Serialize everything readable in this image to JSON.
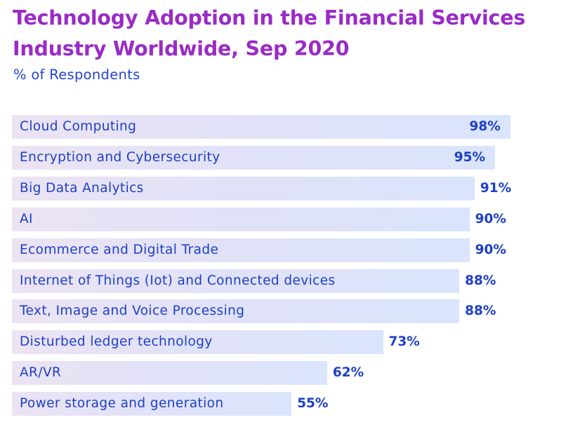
{
  "chart_data": {
    "type": "bar",
    "orientation": "horizontal",
    "title": "Technology Adoption in the Financial Services Industry Worldwide, Sep 2020",
    "subtitle": "% of Respondents",
    "unit": "%",
    "categories": [
      "Cloud Computing",
      "Encryption and Cybersecurity",
      "Big Data Analytics",
      "AI",
      "Ecommerce and Digital Trade",
      "Internet of Things (Iot) and Connected devices",
      "Text, Image and Voice Processing",
      "Disturbed ledger technology",
      "AR/VR",
      "Power storage and generation"
    ],
    "values": [
      98,
      95,
      91,
      90,
      90,
      88,
      88,
      73,
      62,
      55
    ],
    "value_labels": [
      "98%",
      "95%",
      "91%",
      "90%",
      "90%",
      "88%",
      "88%",
      "73%",
      "62%",
      "55%"
    ],
    "grid": false,
    "legend": "none",
    "colors": {
      "title": "#9a2bc6",
      "text": "#1d40c9",
      "bar_start": "#ece3f3",
      "bar_end": "#dae4fc"
    }
  }
}
